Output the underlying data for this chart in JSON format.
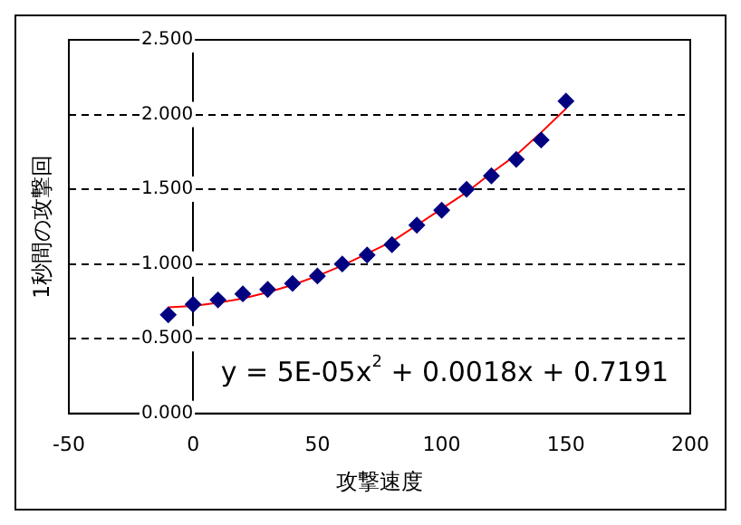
{
  "chart_data": {
    "type": "scatter",
    "xlabel": "攻撃速度",
    "ylabel": "1秒間の攻撃回",
    "xlim": [
      -50,
      200
    ],
    "xticks": [
      -50,
      0,
      50,
      100,
      150,
      200
    ],
    "ylim": [
      0,
      2.5
    ],
    "yticks": [
      {
        "value": 0,
        "label": "0.000"
      },
      {
        "value": 0.5,
        "label": "0.500"
      },
      {
        "value": 1,
        "label": "1.000"
      },
      {
        "value": 1.5,
        "label": "1.500"
      },
      {
        "value": 2,
        "label": "2.000"
      },
      {
        "value": 2.5,
        "label": "2.500"
      }
    ],
    "grid": "y",
    "legend": false,
    "series": [
      {
        "type": "scatter",
        "marker": "diamond",
        "color": "#000080",
        "x": [
          -10,
          0,
          10,
          20,
          30,
          40,
          50,
          60,
          70,
          80,
          90,
          100,
          110,
          120,
          130,
          140,
          150
        ],
        "values": [
          0.66,
          0.73,
          0.76,
          0.8,
          0.83,
          0.87,
          0.92,
          1.0,
          1.06,
          1.13,
          1.26,
          1.36,
          1.5,
          1.59,
          1.7,
          1.83,
          2.09
        ]
      },
      {
        "type": "line",
        "marker": "none",
        "line_style": "solid",
        "color": "#ff0000",
        "x": [
          -10,
          0,
          10,
          20,
          30,
          40,
          50,
          60,
          70,
          80,
          90,
          100,
          110,
          120,
          130,
          140,
          150
        ],
        "values": [
          0.71,
          0.72,
          0.74,
          0.77,
          0.81,
          0.86,
          0.92,
          0.99,
          1.07,
          1.15,
          1.26,
          1.37,
          1.48,
          1.61,
          1.73,
          1.88,
          2.04
        ]
      }
    ],
    "annotations": [
      "y = 5E-05x$^{2}$ + 0.0018x + 0.7191"
    ]
  }
}
